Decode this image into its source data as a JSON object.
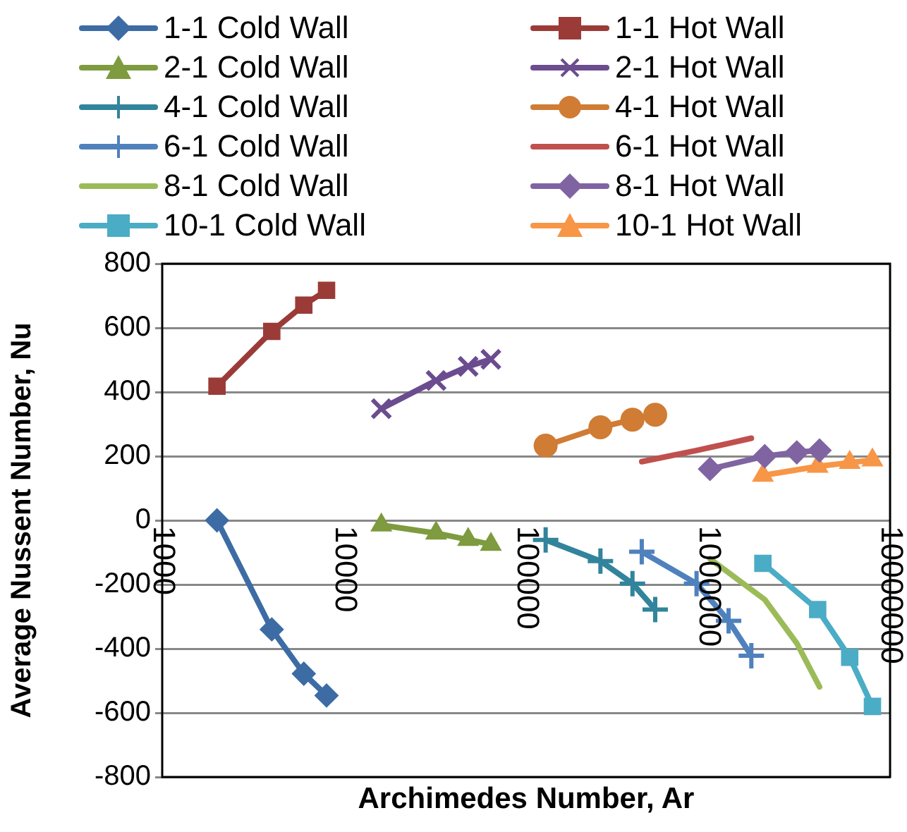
{
  "chart_data": {
    "type": "line",
    "xlabel": "Archimedes Number, Ar",
    "ylabel": "Average Nussent Number, Nu",
    "log": "x",
    "xlim": [
      1000,
      10000000
    ],
    "xticks": [
      1000,
      10000,
      100000,
      1000000,
      10000000
    ],
    "ylim": [
      -800,
      800
    ],
    "yticks": [
      -800,
      -600,
      -400,
      -200,
      0,
      200,
      400,
      600,
      800
    ],
    "grid": "y",
    "legend": "top",
    "line_style": "solid",
    "series": [
      {
        "name": "1-1 Cold Wall",
        "color": "#3d6ca5",
        "marker": "diamond",
        "x": [
          2000,
          4000,
          6000,
          8000
        ],
        "values": [
          0,
          -340,
          -478,
          -546
        ]
      },
      {
        "name": "1-1 Hot Wall",
        "color": "#9b3b38",
        "marker": "square",
        "x": [
          2000,
          4000,
          6000,
          8000
        ],
        "values": [
          418,
          589,
          671,
          717
        ]
      },
      {
        "name": "2-1 Cold Wall",
        "color": "#7e9b3f",
        "marker": "triangle",
        "x": [
          16000,
          32000,
          48000,
          64000
        ],
        "values": [
          -15,
          -40,
          -60,
          -75
        ]
      },
      {
        "name": "2-1 Hot Wall",
        "color": "#6b4c8f",
        "marker": "x",
        "x": [
          16000,
          32000,
          48000,
          64000
        ],
        "values": [
          348,
          436,
          480,
          502
        ]
      },
      {
        "name": "4-1 Cold Wall",
        "color": "#31849b",
        "marker": "cross",
        "x": [
          128000,
          256000,
          384000,
          512000
        ],
        "values": [
          -61,
          -127,
          -197,
          -278
        ]
      },
      {
        "name": "4-1 Hot Wall",
        "color": "#d07c34",
        "marker": "circle",
        "x": [
          128000,
          256000,
          384000,
          512000
        ],
        "values": [
          233,
          290,
          314,
          329
        ]
      },
      {
        "name": "6-1 Cold Wall",
        "color": "#4f81bd",
        "marker": "cross",
        "x": [
          432000,
          864000,
          1296000,
          1728000
        ],
        "values": [
          -98,
          -197,
          -313,
          -422
        ]
      },
      {
        "name": "6-1 Hot Wall",
        "color": "#c0504d",
        "marker": "none",
        "x": [
          432000,
          864000,
          1296000,
          1728000
        ],
        "values": [
          183,
          218,
          240,
          256
        ]
      },
      {
        "name": "8-1 Cold Wall",
        "color": "#9bbb59",
        "marker": "none",
        "x": [
          1024000,
          2048000,
          3072000,
          4096000
        ],
        "values": [
          -120,
          -247,
          -383,
          -519
        ]
      },
      {
        "name": "8-1 Hot Wall",
        "color": "#8064a2",
        "marker": "diamond",
        "x": [
          1024000,
          2048000,
          3072000,
          4096000
        ],
        "values": [
          160,
          200,
          212,
          218
        ]
      },
      {
        "name": "10-1 Cold Wall",
        "color": "#4bacc6",
        "marker": "square",
        "x": [
          2000000,
          4000000,
          6000000,
          8000000
        ],
        "values": [
          -134,
          -278,
          -427,
          -580
        ]
      },
      {
        "name": "10-1 Hot Wall",
        "color": "#f79646",
        "marker": "triangle",
        "x": [
          2000000,
          4000000,
          6000000,
          8000000
        ],
        "values": [
          140,
          168,
          180,
          188
        ]
      }
    ]
  }
}
